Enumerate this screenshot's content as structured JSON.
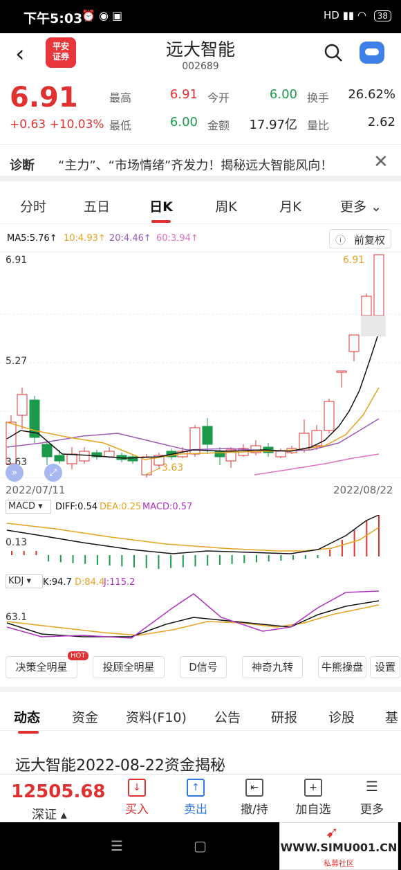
{
  "status": {
    "time": "下午5:03",
    "battery": "38",
    "network": "HD"
  },
  "header": {
    "logo_line1": "平安",
    "logo_line2": "证券",
    "stock_name": "远大智能",
    "stock_code": "002689"
  },
  "quote": {
    "price": "6.91",
    "change": "+0.63",
    "change_pct": "+10.03%",
    "high_label": "最高",
    "high": "6.91",
    "open_label": "今开",
    "open": "6.00",
    "turnover_label": "换手",
    "turnover": "26.62%",
    "low_label": "最低",
    "low": "6.00",
    "amount_label": "金额",
    "amount": "17.97亿",
    "volratio_label": "量比",
    "volratio": "2.62"
  },
  "diagnosis": {
    "label": "诊断",
    "text": "“主力”、“市场情绪”齐发力！揭秘远大智能风向！"
  },
  "tabs": [
    "分时",
    "五日",
    "日K",
    "周K",
    "月K",
    "更多"
  ],
  "ma": {
    "ma5": "MA5:5.76↑",
    "ma10": "10:4.93↑",
    "ma20": "20:4.46↑",
    "ma60": "60:3.94↑"
  },
  "adjust_label": "前复权",
  "chart_labels": {
    "ymax": "6.91",
    "ymid": "5.27",
    "ymin": "3.63",
    "high_mark": "6.91",
    "low_mark": "3.63",
    "date_start": "2022/07/11",
    "date_end": "2022/08/22"
  },
  "macd": {
    "name": "MACD",
    "diff": "DIFF:0.54",
    "dea": "DEA:0.25",
    "macd": "MACD:0.57",
    "axis": "0.13"
  },
  "kdj": {
    "name": "KDJ",
    "k": "K:94.7",
    "d": "D:84.4",
    "j": "J:115.2",
    "axis": "63.1"
  },
  "tool_buttons": [
    "决策全明星",
    "投顾全明星",
    "D信号",
    "神奇九转",
    "牛熊操盘",
    "设置"
  ],
  "hot_badge": "HOT",
  "feed_tabs": [
    "动态",
    "资金",
    "资料(F10)",
    "公告",
    "研报",
    "诊股",
    "基"
  ],
  "news_title": "远大智能2022-08-22资金揭秘",
  "index": {
    "value": "12505.68",
    "name": "深证"
  },
  "bottom_bar": [
    "买入",
    "卖出",
    "撤/持",
    "加自选",
    "更多"
  ],
  "watermark": {
    "text": "WWW.SIMU001.CN",
    "sub": "私募社区"
  },
  "colors": {
    "up": "#e03030",
    "down": "#1a9a4a",
    "ma5": "#111111",
    "ma10": "#e6a21e",
    "ma20": "#9b59b6",
    "ma60": "#e070c0"
  }
}
